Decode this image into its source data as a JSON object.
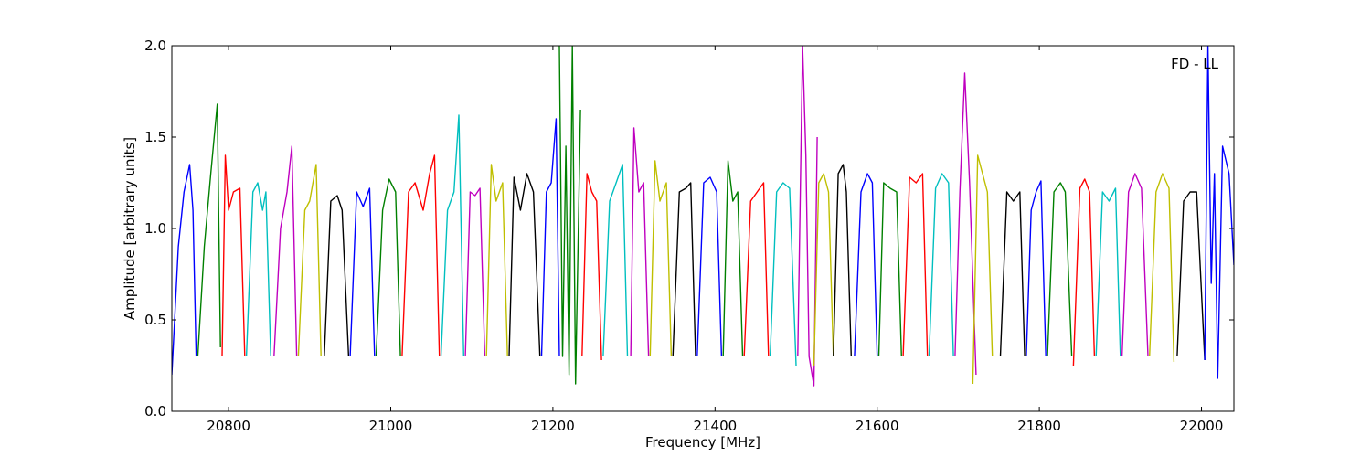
{
  "chart_data": {
    "type": "line",
    "xlabel": "Frequency [MHz]",
    "ylabel": "Amplitude [arbitrary units]",
    "annotation": "FD - LL",
    "xlim": [
      20730,
      22040
    ],
    "ylim": [
      0.0,
      2.0
    ],
    "x_ticks": [
      20800,
      21000,
      21200,
      21400,
      21600,
      21800,
      22000
    ],
    "y_ticks": [
      0.0,
      0.5,
      1.0,
      1.5,
      2.0
    ],
    "x_tick_labels": [
      "20800",
      "21000",
      "21200",
      "21400",
      "21600",
      "21800",
      "22000"
    ],
    "y_tick_labels": [
      "0.0",
      "0.5",
      "1.0",
      "1.5",
      "2.0"
    ],
    "grid": false,
    "series_colors": [
      "#0000ff",
      "#008000",
      "#ff0000",
      "#00bfbf",
      "#bf00bf",
      "#bfbf00",
      "#000000"
    ],
    "series": [
      {
        "x": [
          20730,
          20738,
          20745,
          20752,
          20756,
          20760
        ],
        "y": [
          0.2,
          0.9,
          1.2,
          1.35,
          1.1,
          0.3
        ]
      },
      {
        "x": [
          20762,
          20770,
          20778,
          20786,
          20790
        ],
        "y": [
          0.3,
          0.9,
          1.3,
          1.68,
          0.35
        ]
      },
      {
        "x": [
          20792,
          20796,
          20800,
          20806,
          20814,
          20820
        ],
        "y": [
          0.3,
          1.4,
          1.1,
          1.2,
          1.22,
          0.3
        ]
      },
      {
        "x": [
          20822,
          20830,
          20836,
          20842,
          20846,
          20852
        ],
        "y": [
          0.3,
          1.2,
          1.25,
          1.1,
          1.2,
          0.3
        ]
      },
      {
        "x": [
          20856,
          20864,
          20872,
          20878,
          20884
        ],
        "y": [
          0.3,
          1.0,
          1.2,
          1.45,
          0.3
        ]
      },
      {
        "x": [
          20886,
          20894,
          20900,
          20908,
          20914
        ],
        "y": [
          0.3,
          1.1,
          1.15,
          1.35,
          0.3
        ]
      },
      {
        "x": [
          20918,
          20926,
          20934,
          20940,
          20948
        ],
        "y": [
          0.3,
          1.15,
          1.18,
          1.1,
          0.3
        ]
      },
      {
        "x": [
          20950,
          20958,
          20966,
          20974,
          20980
        ],
        "y": [
          0.3,
          1.2,
          1.12,
          1.22,
          0.3
        ]
      },
      {
        "x": [
          20982,
          20990,
          20998,
          21006,
          21012
        ],
        "y": [
          0.3,
          1.1,
          1.27,
          1.2,
          0.3
        ]
      },
      {
        "x": [
          21014,
          21022,
          21030,
          21040,
          21048,
          21054,
          21060
        ],
        "y": [
          0.3,
          1.2,
          1.25,
          1.1,
          1.3,
          1.4,
          0.3
        ]
      },
      {
        "x": [
          21062,
          21070,
          21078,
          21084,
          21090
        ],
        "y": [
          0.3,
          1.1,
          1.2,
          1.62,
          0.3
        ]
      },
      {
        "x": [
          21092,
          21098,
          21104,
          21110,
          21116
        ],
        "y": [
          0.3,
          1.2,
          1.18,
          1.22,
          0.3
        ]
      },
      {
        "x": [
          21118,
          21124,
          21130,
          21138,
          21144
        ],
        "y": [
          0.3,
          1.35,
          1.15,
          1.25,
          0.3
        ]
      },
      {
        "x": [
          21146,
          21152,
          21160,
          21168,
          21176,
          21184
        ],
        "y": [
          0.3,
          1.28,
          1.1,
          1.3,
          1.2,
          0.3
        ]
      },
      {
        "x": [
          21186,
          21192,
          21198,
          21204,
          21208
        ],
        "y": [
          0.3,
          1.2,
          1.25,
          1.6,
          0.3
        ]
      },
      {
        "x": [
          21208,
          21212,
          21216,
          21220,
          21224,
          21228,
          21234
        ],
        "y": [
          2.0,
          0.3,
          1.45,
          0.2,
          2.0,
          0.15,
          1.65
        ]
      },
      {
        "x": [
          21236,
          21242,
          21248,
          21254,
          21260
        ],
        "y": [
          0.3,
          1.3,
          1.2,
          1.15,
          0.28
        ]
      },
      {
        "x": [
          21262,
          21270,
          21278,
          21286,
          21292
        ],
        "y": [
          0.3,
          1.15,
          1.25,
          1.35,
          0.3
        ]
      },
      {
        "x": [
          21296,
          21300,
          21306,
          21312,
          21318
        ],
        "y": [
          0.3,
          1.55,
          1.2,
          1.25,
          0.3
        ]
      },
      {
        "x": [
          21320,
          21326,
          21332,
          21340,
          21346
        ],
        "y": [
          0.3,
          1.37,
          1.15,
          1.25,
          0.3
        ]
      },
      {
        "x": [
          21348,
          21356,
          21364,
          21370,
          21376
        ],
        "y": [
          0.3,
          1.2,
          1.22,
          1.25,
          0.3
        ]
      },
      {
        "x": [
          21378,
          21386,
          21394,
          21402,
          21408
        ],
        "y": [
          0.3,
          1.25,
          1.28,
          1.2,
          0.3
        ]
      },
      {
        "x": [
          21410,
          21416,
          21422,
          21428,
          21434
        ],
        "y": [
          0.3,
          1.37,
          1.15,
          1.2,
          0.3
        ]
      },
      {
        "x": [
          21436,
          21444,
          21452,
          21460,
          21466
        ],
        "y": [
          0.3,
          1.15,
          1.2,
          1.25,
          0.3
        ]
      },
      {
        "x": [
          21468,
          21476,
          21484,
          21492,
          21500
        ],
        "y": [
          0.3,
          1.2,
          1.25,
          1.22,
          0.25
        ]
      },
      {
        "x": [
          21502,
          21508,
          21512,
          21516,
          21522,
          21526
        ],
        "y": [
          0.3,
          2.0,
          1.4,
          0.3,
          0.14,
          1.5
        ]
      },
      {
        "x": [
          21522,
          21528,
          21534,
          21540,
          21546
        ],
        "y": [
          0.25,
          1.25,
          1.3,
          1.2,
          0.3
        ]
      },
      {
        "x": [
          21546,
          21552,
          21558,
          21562,
          21568
        ],
        "y": [
          0.3,
          1.3,
          1.35,
          1.2,
          0.3
        ]
      },
      {
        "x": [
          21572,
          21580,
          21588,
          21594,
          21600
        ],
        "y": [
          0.3,
          1.2,
          1.3,
          1.25,
          0.3
        ]
      },
      {
        "x": [
          21602,
          21608,
          21616,
          21624,
          21630
        ],
        "y": [
          0.3,
          1.25,
          1.22,
          1.2,
          0.3
        ]
      },
      {
        "x": [
          21632,
          21640,
          21648,
          21656,
          21662
        ],
        "y": [
          0.3,
          1.28,
          1.25,
          1.3,
          0.3
        ]
      },
      {
        "x": [
          21664,
          21672,
          21680,
          21688,
          21694
        ],
        "y": [
          0.3,
          1.22,
          1.3,
          1.25,
          0.3
        ]
      },
      {
        "x": [
          21696,
          21702,
          21708,
          21714,
          21722
        ],
        "y": [
          0.3,
          1.2,
          1.85,
          1.25,
          0.2
        ]
      },
      {
        "x": [
          21718,
          21724,
          21730,
          21736,
          21742
        ],
        "y": [
          0.15,
          1.4,
          1.3,
          1.2,
          0.3
        ]
      },
      {
        "x": [
          21752,
          21760,
          21768,
          21776,
          21782
        ],
        "y": [
          0.3,
          1.2,
          1.15,
          1.2,
          0.3
        ]
      },
      {
        "x": [
          21784,
          21790,
          21796,
          21802,
          21808
        ],
        "y": [
          0.3,
          1.1,
          1.2,
          1.26,
          0.3
        ]
      },
      {
        "x": [
          21810,
          21818,
          21826,
          21832,
          21840
        ],
        "y": [
          0.3,
          1.2,
          1.25,
          1.2,
          0.3
        ]
      },
      {
        "x": [
          21842,
          21850,
          21856,
          21862,
          21868
        ],
        "y": [
          0.25,
          1.22,
          1.27,
          1.2,
          0.3
        ]
      },
      {
        "x": [
          21870,
          21878,
          21886,
          21894,
          21900
        ],
        "y": [
          0.3,
          1.2,
          1.15,
          1.22,
          0.3
        ]
      },
      {
        "x": [
          21902,
          21910,
          21918,
          21926,
          21934
        ],
        "y": [
          0.3,
          1.2,
          1.3,
          1.22,
          0.3
        ]
      },
      {
        "x": [
          21936,
          21944,
          21952,
          21960,
          21966
        ],
        "y": [
          0.3,
          1.2,
          1.3,
          1.22,
          0.27
        ]
      },
      {
        "x": [
          21970,
          21978,
          21986,
          21994,
          22004
        ],
        "y": [
          0.3,
          1.15,
          1.2,
          1.2,
          0.28
        ]
      },
      {
        "x": [
          22004,
          22008,
          22012,
          22016,
          22020,
          22026,
          22034,
          22040
        ],
        "y": [
          0.28,
          2.0,
          0.7,
          1.3,
          0.18,
          1.45,
          1.3,
          0.8
        ]
      }
    ]
  }
}
